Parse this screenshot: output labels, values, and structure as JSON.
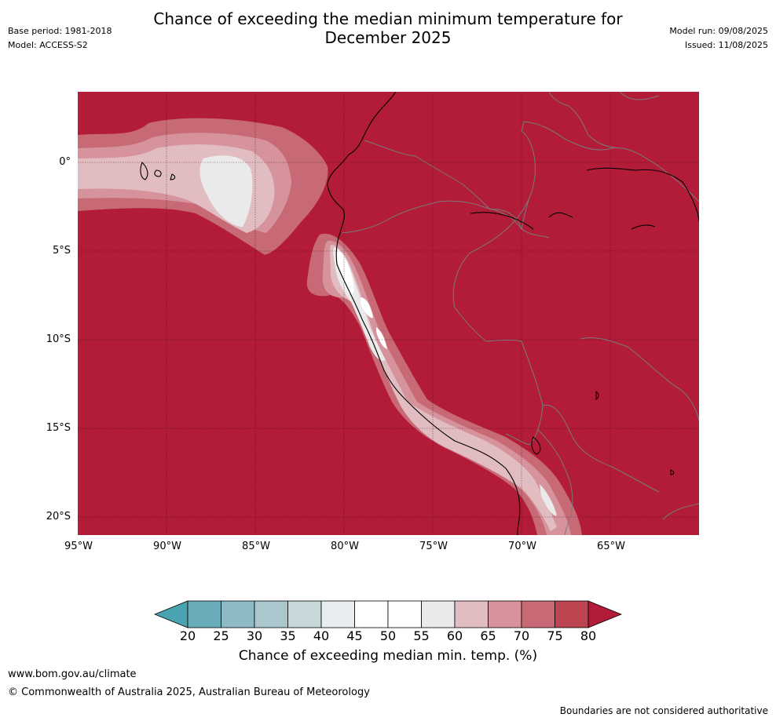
{
  "header": {
    "title_line1": "Chance of exceeding the median minimum temperature for",
    "title_line2": "December 2025",
    "base_period": "Base period: 1981-2018",
    "model": "Model: ACCESS-S2",
    "model_run": "Model run: 09/08/2025",
    "issued": "Issued: 11/08/2025"
  },
  "map": {
    "background_color": "#b21c38",
    "land_boundary_color": "#7a7a7a",
    "coastline_color": "#000000",
    "lat_labels": [
      "0°",
      "5°S",
      "10°S",
      "15°S",
      "20°S"
    ],
    "lon_labels": [
      "95°W",
      "90°W",
      "85°W",
      "80°W",
      "75°W",
      "70°W",
      "65°W"
    ]
  },
  "legend": {
    "title": "Chance of exceeding median min. temp. (%)",
    "ticks": [
      "20",
      "25",
      "30",
      "35",
      "40",
      "45",
      "50",
      "55",
      "60",
      "65",
      "70",
      "75",
      "80"
    ],
    "colors": [
      "#4aa3b0",
      "#6aadba",
      "#8dbac5",
      "#aac7cd",
      "#c8d8da",
      "#e8eef0",
      "#ffffff",
      "#ffffff",
      "#ebeaea",
      "#e1bdc2",
      "#d6939b",
      "#c76a75",
      "#bd4552",
      "#b21c38"
    ]
  },
  "footer": {
    "website": "www.bom.gov.au/climate",
    "copyright": "© Commonwealth of Australia 2025, Australian Bureau of Meteorology",
    "disclaimer": "Boundaries are not considered authoritative"
  }
}
